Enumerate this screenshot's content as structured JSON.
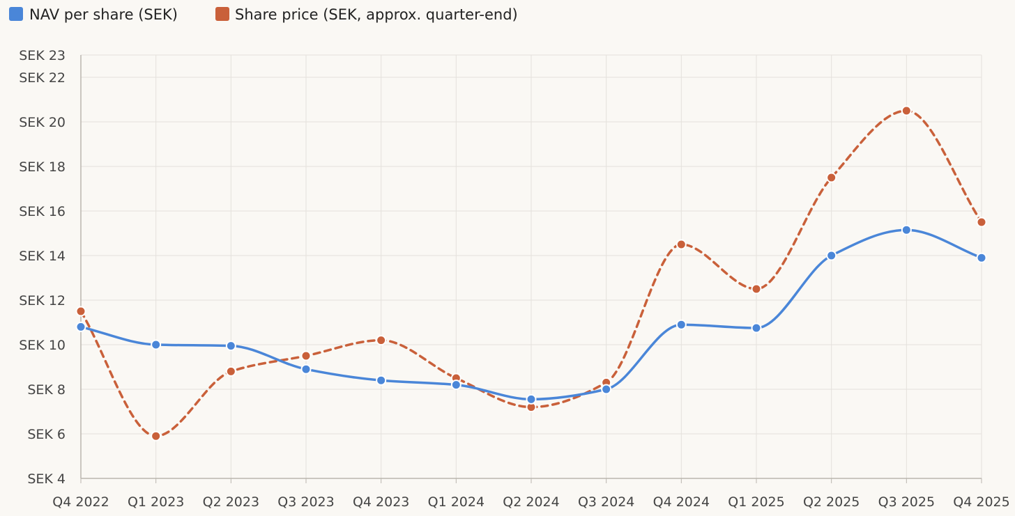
{
  "chart_data": {
    "type": "line",
    "title": "",
    "xlabel": "",
    "ylabel": "",
    "categories": [
      "Q4 2022",
      "Q1 2023",
      "Q2 2023",
      "Q3 2023",
      "Q4 2023",
      "Q1 2024",
      "Q2 2024",
      "Q3 2024",
      "Q4 2024",
      "Q1 2025",
      "Q2 2025",
      "Q3 2025",
      "Q4 2025"
    ],
    "y_ticks": [
      4,
      6,
      8,
      10,
      12,
      14,
      16,
      18,
      20,
      22,
      23
    ],
    "y_tick_prefix": "SEK ",
    "ylim": [
      4,
      23
    ],
    "grid": true,
    "legend_position": "top-left",
    "series": [
      {
        "name": "NAV per share (SEK)",
        "color": "#4a86d8",
        "line_style": "solid",
        "values": [
          10.8,
          10.0,
          9.95,
          8.9,
          8.4,
          8.2,
          7.55,
          8.0,
          10.9,
          10.75,
          14.0,
          15.15,
          13.9
        ]
      },
      {
        "name": "Share price (SEK, approx. quarter-end)",
        "color": "#c9603a",
        "line_style": "dashed",
        "values": [
          11.5,
          5.9,
          8.8,
          9.5,
          10.2,
          8.5,
          7.2,
          8.3,
          14.5,
          12.5,
          17.5,
          20.5,
          15.5
        ]
      }
    ]
  }
}
